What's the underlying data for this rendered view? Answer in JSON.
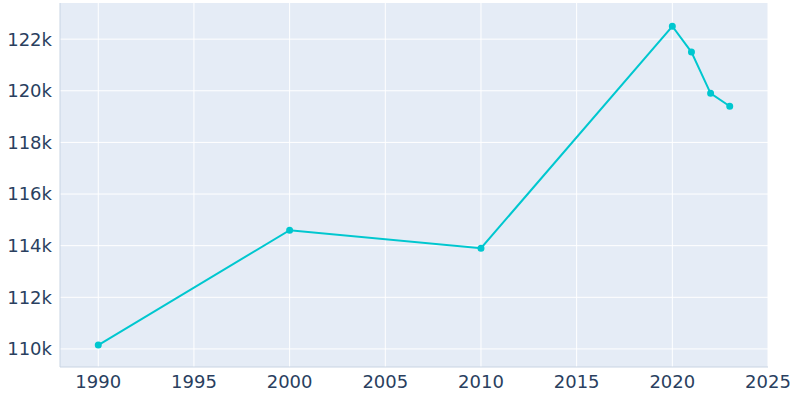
{
  "chart_data": {
    "type": "line",
    "x": [
      1990,
      2000,
      2010,
      2020,
      2021,
      2022,
      2023
    ],
    "values": [
      110150,
      114600,
      113900,
      122500,
      121500,
      119900,
      119400
    ],
    "color": "#00c7cf",
    "marker": "circle",
    "line_style": "solid",
    "xlim": [
      1988,
      2025
    ],
    "xticks": [
      1990,
      1995,
      2000,
      2005,
      2010,
      2015,
      2020,
      2025
    ],
    "ylim": [
      109300,
      123400
    ],
    "yticks": [
      {
        "value": 110000,
        "label": "110k"
      },
      {
        "value": 112000,
        "label": "112k"
      },
      {
        "value": 114000,
        "label": "114k"
      },
      {
        "value": 116000,
        "label": "116k"
      },
      {
        "value": 118000,
        "label": "118k"
      },
      {
        "value": 120000,
        "label": "120k"
      },
      {
        "value": 122000,
        "label": "122k"
      }
    ],
    "grid": true
  }
}
